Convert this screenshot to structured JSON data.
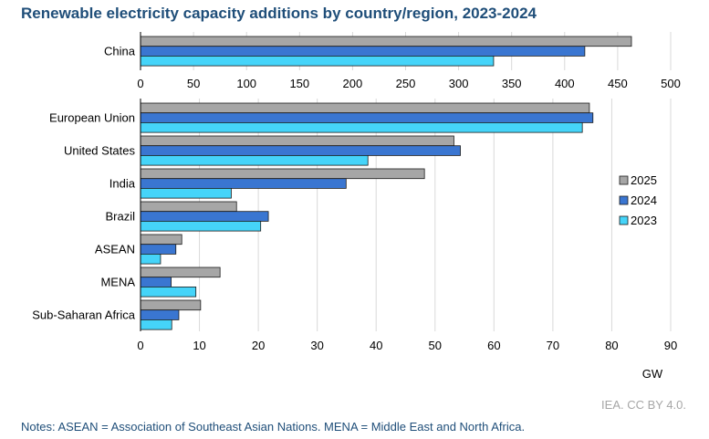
{
  "title": "Renewable electricity capacity additions by country/region, 2023-2024",
  "credit": "IEA. CC BY 4.0.",
  "notes": "Notes: ASEAN = Association of Southeast Asian Nations. MENA = Middle East and North Africa.",
  "chart_data": [
    {
      "type": "bar",
      "orientation": "horizontal",
      "categories": [
        "China"
      ],
      "series": [
        {
          "name": "2025",
          "color": "#a6a6a6",
          "values": [
            463
          ]
        },
        {
          "name": "2024",
          "color": "#3a76d1",
          "values": [
            419
          ]
        },
        {
          "name": "2023",
          "color": "#45d4f9",
          "values": [
            333
          ]
        }
      ],
      "xlim": [
        0,
        500
      ],
      "xticks": [
        0,
        50,
        100,
        150,
        200,
        250,
        300,
        350,
        400,
        450,
        500
      ],
      "grid": true
    },
    {
      "type": "bar",
      "orientation": "horizontal",
      "categories": [
        "European Union",
        "United States",
        "India",
        "Brazil",
        "ASEAN",
        "MENA",
        "Sub-Saharan Africa"
      ],
      "series": [
        {
          "name": "2025",
          "color": "#a6a6a6",
          "values": [
            76.2,
            53.2,
            48.2,
            16.3,
            7.0,
            13.5,
            10.2
          ]
        },
        {
          "name": "2024",
          "color": "#3a76d1",
          "values": [
            76.8,
            54.3,
            34.9,
            21.7,
            6.0,
            5.2,
            6.5
          ]
        },
        {
          "name": "2023",
          "color": "#45d4f9",
          "values": [
            75.0,
            38.6,
            15.4,
            20.4,
            3.4,
            9.4,
            5.3
          ]
        }
      ],
      "xlim": [
        0,
        90
      ],
      "xticks": [
        0,
        10,
        20,
        30,
        40,
        50,
        60,
        70,
        80,
        90
      ],
      "xlabel": "GW",
      "legend": "right",
      "grid": true
    }
  ]
}
